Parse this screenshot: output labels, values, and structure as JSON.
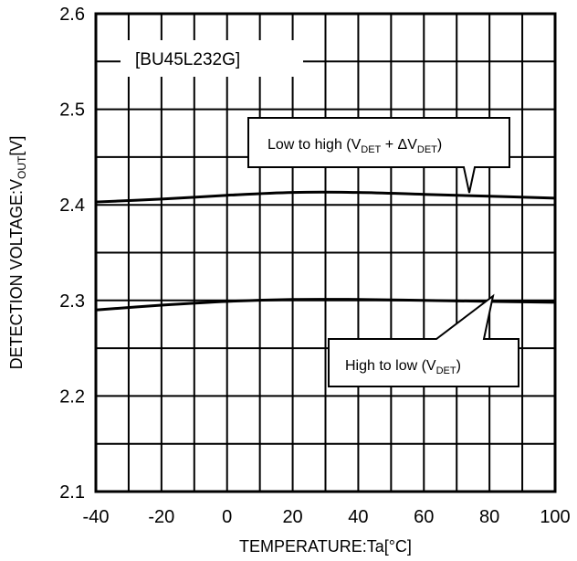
{
  "chart_data": {
    "type": "line",
    "title": "",
    "model_label": "[BU45L232G]",
    "xlabel": "TEMPERATURE:Ta[°C]",
    "ylabel": {
      "prefix": "DETECTION VOLTAGE:V",
      "sub": "OUT",
      "suffix": "[V]"
    },
    "xlim": [
      -40,
      100
    ],
    "ylim": [
      2.1,
      2.6
    ],
    "x_ticks": [
      "-40",
      "-20",
      "0",
      "20",
      "40",
      "60",
      "80",
      "100"
    ],
    "y_ticks": [
      "2.1",
      "2.2",
      "2.3",
      "2.4",
      "2.5",
      "2.6"
    ],
    "grid": true,
    "series": [
      {
        "name": "Low to high (VDET + ΔVDET)",
        "x": [
          -40,
          -20,
          0,
          20,
          40,
          60,
          80,
          100
        ],
        "y": [
          2.403,
          2.406,
          2.41,
          2.413,
          2.413,
          2.411,
          2.409,
          2.407
        ]
      },
      {
        "name": "High to low (VDET)",
        "x": [
          -40,
          -20,
          0,
          20,
          40,
          60,
          80,
          100
        ],
        "y": [
          2.29,
          2.295,
          2.299,
          2.301,
          2.301,
          2.3,
          2.299,
          2.298
        ]
      }
    ],
    "annotations": [
      {
        "text_main": "Low to high (V",
        "sub1": "DET",
        "mid": " + ΔV",
        "sub2": "DET",
        "end": ")"
      },
      {
        "text_main": "High to low (V",
        "sub1": "DET",
        "end": ")"
      }
    ]
  }
}
